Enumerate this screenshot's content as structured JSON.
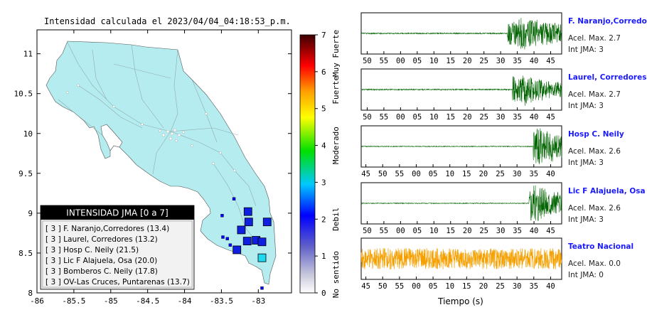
{
  "title": "Intensidad calculada el 2023/04/04_04:18:53_p.m.",
  "map": {
    "x_ticks": [
      "-86",
      "-85.5",
      "-85",
      "-84.5",
      "-84",
      "-83.5",
      "-83"
    ],
    "y_ticks": [
      "8",
      "8.5",
      "9",
      "9.5",
      "10",
      "10.5",
      "11"
    ],
    "land_color": "#b4ecf0",
    "water_color": "#ffffff"
  },
  "colorbar": {
    "ticks": [
      "0",
      "1",
      "2",
      "3",
      "4",
      "5",
      "6",
      "7"
    ],
    "labels": [
      "No sentido",
      "Debil",
      "Moderado",
      "Fuerte",
      "Muy Fuerte"
    ]
  },
  "legend": {
    "header": "INTENSIDAD JMA [0 a 7]",
    "items": [
      "[ 3 ]  F. Naranjo,Corredores (13.4)",
      "[ 3 ]  Laurel, Corredores (13.2)",
      "[ 3 ]  Hosp C. Neily (21.5)",
      "[ 3 ]  Lic F Alajuela, Osa (20.0)",
      "[ 3 ]  Bomberos C. Neily (17.8)",
      "[ 3 ]  OV-Las Cruces, Puntarenas (13.7)"
    ]
  },
  "chart_data": [
    {
      "type": "scatter",
      "title": "Intensidad calculada el 2023/04/04_04:18:53_p.m.",
      "xlim": [
        -86,
        -82.55
      ],
      "ylim": [
        8,
        11.3
      ],
      "x_ticks": [
        -86,
        -85.5,
        -85,
        -84.5,
        -84,
        -83.5,
        -83
      ],
      "y_ticks": [
        8,
        8.5,
        9,
        9.5,
        10,
        10.5,
        11
      ],
      "colorbar": {
        "range": [
          0,
          7
        ],
        "labels": [
          "No sentido",
          "Debil",
          "Moderado",
          "Fuerte",
          "Muy Fuerte"
        ]
      },
      "stations": [
        {
          "lon": -83.14,
          "lat": 9.02,
          "intensity": 3
        },
        {
          "lon": -83.13,
          "lat": 8.89,
          "intensity": 3
        },
        {
          "lon": -83.23,
          "lat": 8.79,
          "intensity": 3
        },
        {
          "lon": -82.88,
          "lat": 8.89,
          "intensity": 3
        },
        {
          "lon": -83.15,
          "lat": 8.65,
          "intensity": 3
        },
        {
          "lon": -83.03,
          "lat": 8.66,
          "intensity": 3
        },
        {
          "lon": -82.95,
          "lat": 8.64,
          "intensity": 3
        },
        {
          "lon": -83.29,
          "lat": 8.54,
          "intensity": 3
        },
        {
          "lon": -82.95,
          "lat": 8.44,
          "intensity": 2.5
        },
        {
          "lon": -83.33,
          "lat": 9.18,
          "intensity": 2
        },
        {
          "lon": -83.49,
          "lat": 8.97,
          "intensity": 2
        },
        {
          "lon": -83.48,
          "lat": 8.7,
          "intensity": 2
        },
        {
          "lon": -83.42,
          "lat": 8.68,
          "intensity": 2
        },
        {
          "lon": -83.38,
          "lat": 8.6,
          "intensity": 2
        },
        {
          "lon": -82.95,
          "lat": 8.06,
          "intensity": 2
        }
      ]
    },
    {
      "type": "line",
      "xlabel": "Tiempo (s)",
      "panels": [
        {
          "station": "F. Naranjo,Corredores",
          "acel_label": "Acel. Max. 2.7",
          "int_label": "Int JMA: 3",
          "color": "#006400",
          "x_ticks": [
            "50",
            "55",
            "00",
            "05",
            "10",
            "15",
            "20",
            "25",
            "30",
            "35",
            "40",
            "45"
          ],
          "x_start": 48.2,
          "x_end": 108.3,
          "onset": 92.0,
          "noise": 0.03,
          "envelope": [
            0.62,
            0.85,
            0.72,
            0.6,
            0.55,
            0.5
          ]
        },
        {
          "station": "Laurel, Corredores",
          "acel_label": "Acel. Max. 2.7",
          "int_label": "Int JMA: 3",
          "color": "#006400",
          "x_ticks": [
            "50",
            "55",
            "00",
            "05",
            "10",
            "15",
            "20",
            "25",
            "30",
            "35",
            "40",
            "45"
          ],
          "x_start": 48.2,
          "x_end": 108.3,
          "onset": 93.5,
          "noise": 0.03,
          "envelope": [
            0.7,
            0.85,
            0.6,
            0.45,
            0.4,
            0.35
          ]
        },
        {
          "station": "Hosp C. Neily",
          "acel_label": "Acel. Max. 2.6",
          "int_label": "Int JMA: 3",
          "color": "#006400",
          "x_ticks": [
            "45",
            "50",
            "55",
            "00",
            "05",
            "10",
            "15",
            "20",
            "25",
            "30",
            "35",
            "40"
          ],
          "x_start": 43.6,
          "x_end": 103.3,
          "onset": 94.8,
          "noise": 0.02,
          "envelope": [
            0.95,
            0.8,
            0.6,
            0.45,
            0.35,
            0.3
          ]
        },
        {
          "station": "Lic F Alajuela, Osa",
          "acel_label": "Acel. Max. 2.6",
          "int_label": "Int JMA: 3",
          "color": "#006400",
          "x_ticks": [
            "50",
            "55",
            "00",
            "05",
            "10",
            "15",
            "20",
            "25",
            "30",
            "35",
            "40",
            "45"
          ],
          "x_start": 48.2,
          "x_end": 108.3,
          "onset": 98.5,
          "noise": 0.02,
          "envelope": [
            0.95,
            0.8,
            0.65,
            0.5,
            0.4,
            0.35
          ]
        },
        {
          "station": "Teatro Nacional",
          "acel_label": "Acel. Max. 0.0",
          "int_label": "Int JMA: 0",
          "color": "#f5a000",
          "x_ticks": [
            "45",
            "50",
            "55",
            "00",
            "05",
            "10",
            "15",
            "20",
            "25",
            "30",
            "35",
            "40"
          ],
          "x_start": 43.6,
          "x_end": 103.3,
          "onset": 200,
          "noise": 0.55,
          "envelope": [
            0,
            0,
            0,
            0,
            0,
            0
          ]
        }
      ]
    }
  ]
}
